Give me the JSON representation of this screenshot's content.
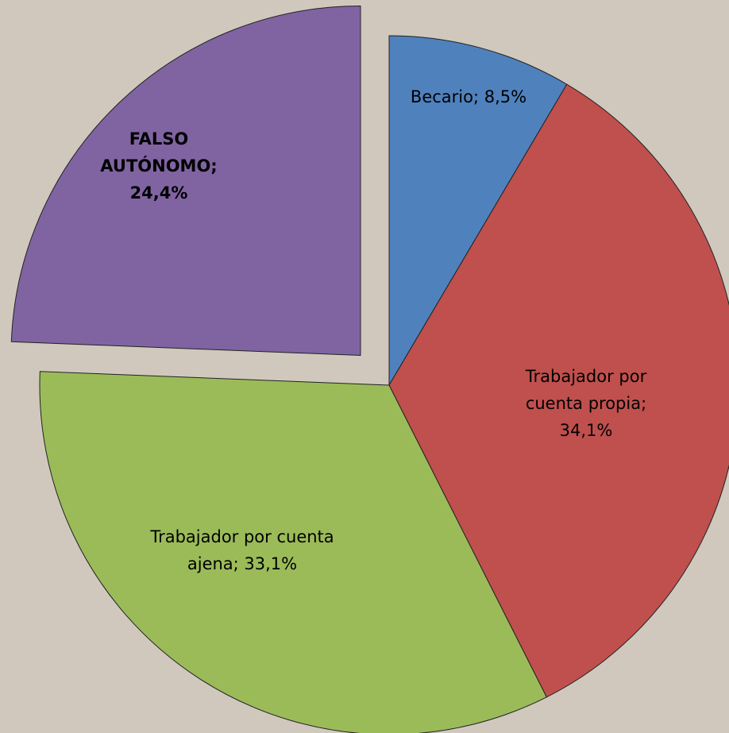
{
  "chart_data": {
    "type": "pie",
    "values": [
      8.5,
      34.1,
      33.1,
      24.4
    ],
    "value_labels": [
      "Becario; 8,5%",
      "Trabajador por cuenta propia; 34,1%",
      "Trabajador por cuenta ajena; 33,1%",
      "FALSO AUTÓNOMO; 24,4%"
    ],
    "colors": [
      "#4f81bd",
      "#c0504d",
      "#9bbb59",
      "#8064a2"
    ],
    "explode": [
      false,
      false,
      false,
      true
    ]
  }
}
